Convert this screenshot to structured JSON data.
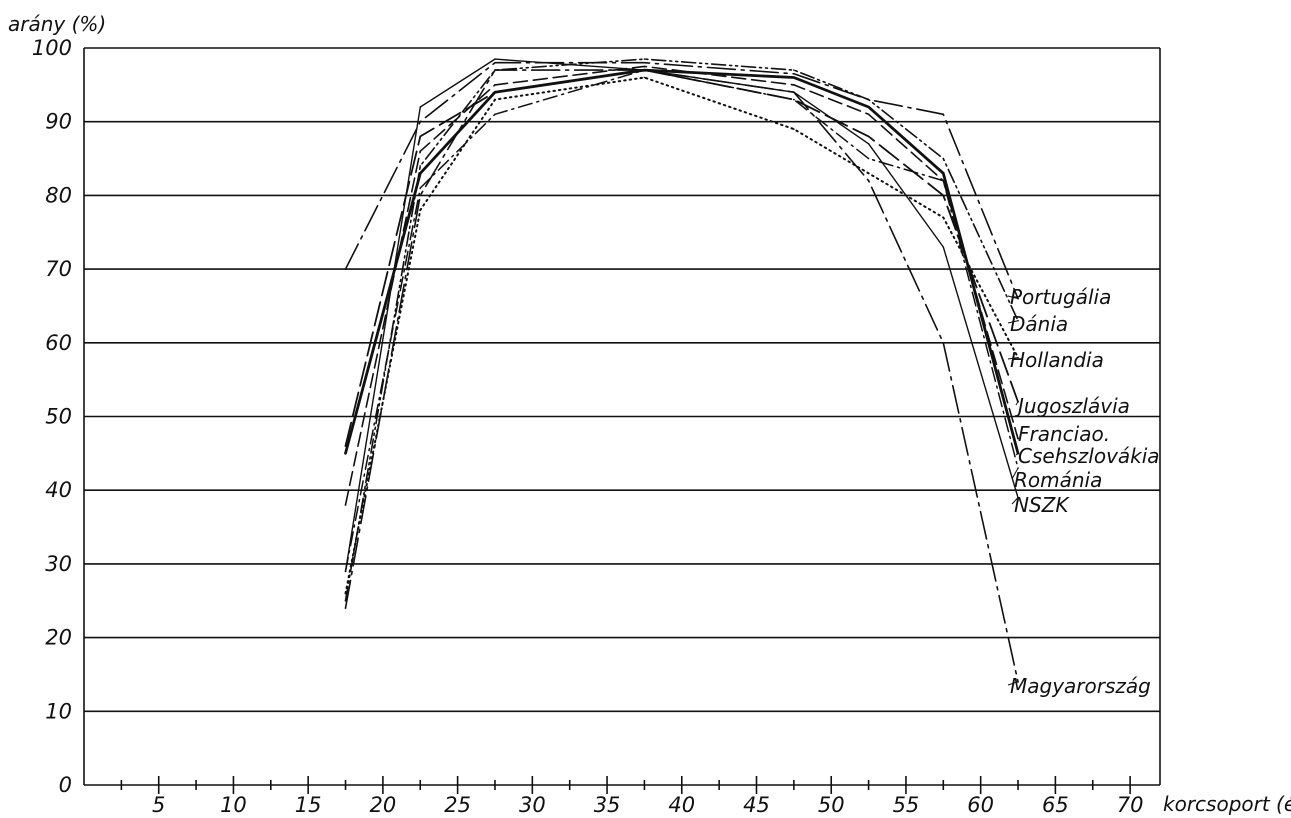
{
  "chart_data": {
    "type": "line",
    "ylabel": "arány (%)",
    "xlabel": "korcsoport (év)",
    "x_ticks": [
      "5",
      "10",
      "15",
      "20",
      "25",
      "30",
      "35",
      "40",
      "45",
      "50",
      "55",
      "60",
      "65",
      "70"
    ],
    "y_ticks": [
      "0",
      "10",
      "20",
      "30",
      "40",
      "50",
      "60",
      "70",
      "80",
      "90",
      "100"
    ],
    "xlim": [
      0,
      72
    ],
    "ylim": [
      0,
      100
    ],
    "grid": "horizontal",
    "legend": "right, labels at line ends",
    "x": [
      17.5,
      22.5,
      27.5,
      37.5,
      47.5,
      52.5,
      57.5,
      62.5
    ],
    "series": [
      {
        "name": "Portugália",
        "dash": "long-dash-dot",
        "values": [
          70,
          90,
          98,
          98,
          96.5,
          93,
          91,
          66
        ]
      },
      {
        "name": "Dánia",
        "dash": "dash-dot-dot",
        "values": [
          25,
          84,
          97,
          98.5,
          97,
          93,
          85,
          63
        ]
      },
      {
        "name": "Hollandia",
        "dash": "dotted",
        "values": [
          26,
          78,
          93,
          96,
          89,
          83,
          77,
          58
        ]
      },
      {
        "name": "Jugoszlávia",
        "dash": "long-dash",
        "values": [
          46,
          88,
          94,
          97,
          93,
          88,
          80,
          52
        ]
      },
      {
        "name": "Franciao.",
        "dash": "dash",
        "values": [
          38,
          86,
          95,
          97.5,
          95,
          91,
          82,
          47
        ]
      },
      {
        "name": "Csehszlovákia",
        "dash": "solid-bold",
        "values": [
          45,
          83,
          94,
          97,
          96,
          92,
          83,
          45
        ]
      },
      {
        "name": "Románia",
        "dash": "dash-dot",
        "values": [
          29,
          81,
          91,
          97,
          93,
          85,
          82,
          43
        ]
      },
      {
        "name": "NSZK",
        "dash": "solid",
        "values": [
          29,
          92,
          98.5,
          97,
          94,
          87,
          73,
          39
        ]
      },
      {
        "name": "Magyarország",
        "dash": "long-dash-dot",
        "values": [
          24,
          80,
          97,
          97,
          94,
          82,
          60,
          14
        ]
      }
    ]
  }
}
